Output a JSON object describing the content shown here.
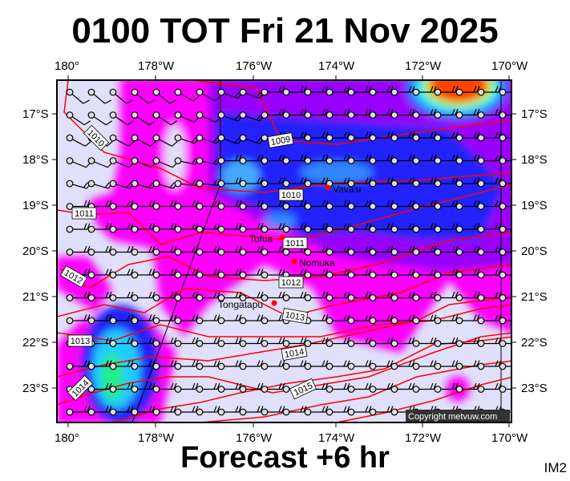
{
  "title": "0100 TOT Fri 21 Nov 2025",
  "footer": "Forecast +6 hr",
  "image_code": "IM2",
  "copyright": "Copyright metvuw.com",
  "lon_ticks": [
    "180°",
    "178°W",
    "176°W",
    "174°W",
    "172°W",
    "170°W"
  ],
  "lat_ticks": [
    "17°S",
    "18°S",
    "19°S",
    "20°S",
    "21°S",
    "22°S",
    "23°S"
  ],
  "places": [
    "Vava'u",
    "Tofua",
    "Nomuka",
    "Tongatapu"
  ],
  "isobar_labels": [
    "1009",
    "1010",
    "1010",
    "1011",
    "1011",
    "1012",
    "1012",
    "1013",
    "1013",
    "1014",
    "1014",
    "1015"
  ],
  "colors": {
    "isobar": "#ff0000",
    "background": "#e0e0fa",
    "magenta": "#ff00ff",
    "purple": "#9900ff",
    "blue": "#0000ff",
    "place_marker": "#ff0000"
  }
}
